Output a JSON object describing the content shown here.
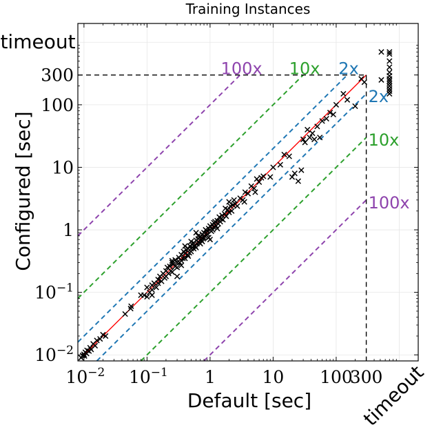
{
  "chart_data": {
    "type": "scatter",
    "title": "Training Instances",
    "xlabel": "Default [sec]",
    "ylabel": "Configured [sec]",
    "xscale": "log",
    "yscale": "log",
    "xlim": [
      0.008,
      2000
    ],
    "ylim": [
      0.008,
      2000
    ],
    "grid": true,
    "x_ticks": [
      {
        "value": 0.01,
        "base": "10",
        "exp": "−2"
      },
      {
        "value": 0.1,
        "base": "10",
        "exp": "−1"
      },
      {
        "value": 1,
        "label": "1"
      },
      {
        "value": 10,
        "label": "10"
      },
      {
        "value": 100,
        "label": "100"
      },
      {
        "value": 300,
        "label": "300"
      }
    ],
    "y_ticks": [
      {
        "value": 0.01,
        "base": "10",
        "exp": "−2"
      },
      {
        "value": 0.1,
        "base": "10",
        "exp": "−1"
      },
      {
        "value": 1,
        "label": "1"
      },
      {
        "value": 10,
        "label": "10"
      },
      {
        "value": 100,
        "label": "100"
      },
      {
        "value": 300,
        "label": "300"
      }
    ],
    "timeout_label": "timeout",
    "timeout_cutoff": 300,
    "timeout_position": 700,
    "reference_lines": [
      {
        "factor": 2,
        "label": "2x",
        "color": "#1f77b4"
      },
      {
        "factor": 10,
        "label": "10x",
        "color": "#2ca02c"
      },
      {
        "factor": 100,
        "label": "100x",
        "color": "#8e44ad"
      }
    ],
    "fit_line": {
      "color": "#ff0000",
      "x_range": [
        0.01,
        300
      ],
      "slope": 1.0
    },
    "marker": "x",
    "marker_color": "#000000",
    "points": [
      [
        0.009,
        0.009
      ],
      [
        0.0095,
        0.0098
      ],
      [
        0.01,
        0.0102
      ],
      [
        0.0102,
        0.0096
      ],
      [
        0.0105,
        0.011
      ],
      [
        0.011,
        0.0105
      ],
      [
        0.0112,
        0.0118
      ],
      [
        0.012,
        0.0115
      ],
      [
        0.0125,
        0.013
      ],
      [
        0.013,
        0.0122
      ],
      [
        0.014,
        0.015
      ],
      [
        0.015,
        0.014
      ],
      [
        0.016,
        0.017
      ],
      [
        0.018,
        0.018
      ],
      [
        0.02,
        0.021
      ],
      [
        0.022,
        0.02
      ],
      [
        0.045,
        0.045
      ],
      [
        0.055,
        0.055
      ],
      [
        0.056,
        0.06
      ],
      [
        0.09,
        0.09
      ],
      [
        0.1,
        0.085
      ],
      [
        0.1,
        0.12
      ],
      [
        0.11,
        0.1
      ],
      [
        0.12,
        0.13
      ],
      [
        0.12,
        0.11
      ],
      [
        0.13,
        0.14
      ],
      [
        0.14,
        0.12
      ],
      [
        0.15,
        0.16
      ],
      [
        0.15,
        0.14
      ],
      [
        0.16,
        0.18
      ],
      [
        0.17,
        0.15
      ],
      [
        0.18,
        0.2
      ],
      [
        0.19,
        0.17
      ],
      [
        0.2,
        0.22
      ],
      [
        0.2,
        0.18
      ],
      [
        0.21,
        0.25
      ],
      [
        0.22,
        0.2
      ],
      [
        0.23,
        0.26
      ],
      [
        0.24,
        0.22
      ],
      [
        0.25,
        0.3
      ],
      [
        0.25,
        0.21
      ],
      [
        0.26,
        0.28
      ],
      [
        0.28,
        0.26
      ],
      [
        0.28,
        0.33
      ],
      [
        0.3,
        0.3
      ],
      [
        0.3,
        0.25
      ],
      [
        0.32,
        0.36
      ],
      [
        0.33,
        0.3
      ],
      [
        0.35,
        0.4
      ],
      [
        0.35,
        0.32
      ],
      [
        0.37,
        0.35
      ],
      [
        0.38,
        0.45
      ],
      [
        0.4,
        0.42
      ],
      [
        0.4,
        0.35
      ],
      [
        0.42,
        0.48
      ],
      [
        0.44,
        0.4
      ],
      [
        0.45,
        0.5
      ],
      [
        0.47,
        0.43
      ],
      [
        0.48,
        0.55
      ],
      [
        0.5,
        0.5
      ],
      [
        0.5,
        0.45
      ],
      [
        0.52,
        0.58
      ],
      [
        0.55,
        0.5
      ],
      [
        0.55,
        0.62
      ],
      [
        0.58,
        0.55
      ],
      [
        0.6,
        0.68
      ],
      [
        0.6,
        0.52
      ],
      [
        0.62,
        0.6
      ],
      [
        0.65,
        0.72
      ],
      [
        0.68,
        0.62
      ],
      [
        0.7,
        0.78
      ],
      [
        0.7,
        0.6
      ],
      [
        0.72,
        0.7
      ],
      [
        0.75,
        0.85
      ],
      [
        0.78,
        0.72
      ],
      [
        0.8,
        0.9
      ],
      [
        0.8,
        0.75
      ],
      [
        0.82,
        0.8
      ],
      [
        0.85,
        1.0
      ],
      [
        0.88,
        0.82
      ],
      [
        0.9,
        0.95
      ],
      [
        0.92,
        0.85
      ],
      [
        0.95,
        1.05
      ],
      [
        1.0,
        1.0
      ],
      [
        1.0,
        1.15
      ],
      [
        1.05,
        0.95
      ],
      [
        1.1,
        1.2
      ],
      [
        1.1,
        1.0
      ],
      [
        1.15,
        1.1
      ],
      [
        1.2,
        1.35
      ],
      [
        1.25,
        1.15
      ],
      [
        1.3,
        1.4
      ],
      [
        1.35,
        1.25
      ],
      [
        1.4,
        1.6
      ],
      [
        1.45,
        1.35
      ],
      [
        1.5,
        1.5
      ],
      [
        1.55,
        1.7
      ],
      [
        1.6,
        1.45
      ],
      [
        1.7,
        1.8
      ],
      [
        1.8,
        1.65
      ],
      [
        1.9,
        2.1
      ],
      [
        2.0,
        1.9
      ],
      [
        2.1,
        2.4
      ],
      [
        2.2,
        2.0
      ],
      [
        2.3,
        2.5
      ],
      [
        2.5,
        2.6
      ],
      [
        2.7,
        2.4
      ],
      [
        3.0,
        3.2
      ],
      [
        3.3,
        3.0
      ],
      [
        3.6,
        4.0
      ],
      [
        4.0,
        3.8
      ],
      [
        4.5,
        5.0
      ],
      [
        5.0,
        4.6
      ],
      [
        5.5,
        6.5
      ],
      [
        6.0,
        5.8
      ],
      [
        6.5,
        6.8
      ],
      [
        7.0,
        7.2
      ],
      [
        9.0,
        7.0
      ],
      [
        10.0,
        10.0
      ],
      [
        13.0,
        11.0
      ],
      [
        15.0,
        16.0
      ],
      [
        18.0,
        15.0
      ],
      [
        20.0,
        7.0
      ],
      [
        22.0,
        8.0
      ],
      [
        25.0,
        6.0
      ],
      [
        28.0,
        9.0
      ],
      [
        30.0,
        28.0
      ],
      [
        32.0,
        25.0
      ],
      [
        35.0,
        40.0
      ],
      [
        38.0,
        30.0
      ],
      [
        42.0,
        35.0
      ],
      [
        45.0,
        28.0
      ],
      [
        50.0,
        45.0
      ],
      [
        55.0,
        30.0
      ],
      [
        60.0,
        55.0
      ],
      [
        70.0,
        60.0
      ],
      [
        80.0,
        75.0
      ],
      [
        90.0,
        70.0
      ],
      [
        100.0,
        100.0
      ],
      [
        130.0,
        150.0
      ],
      [
        150.0,
        120.0
      ],
      [
        200.0,
        95.0
      ],
      [
        250.0,
        260.0
      ],
      [
        280.0,
        230.0
      ],
      [
        0.12,
        0.09
      ],
      [
        0.5,
        0.65
      ],
      [
        0.95,
        0.75
      ],
      [
        1.3,
        1.05
      ],
      [
        2.4,
        3.0
      ],
      [
        0.35,
        0.27
      ],
      [
        0.65,
        0.8
      ],
      [
        3.5,
        2.8
      ],
      [
        5.2,
        4.0
      ],
      [
        1.75,
        2.2
      ],
      [
        0.08,
        0.09
      ],
      [
        0.25,
        0.32
      ],
      [
        0.45,
        0.38
      ],
      [
        0.75,
        0.65
      ],
      [
        1.15,
        1.3
      ],
      [
        0.3,
        0.18
      ],
      [
        0.6,
        0.9
      ],
      [
        1.0,
        0.7
      ],
      [
        2.0,
        2.8
      ],
      [
        0.4,
        0.55
      ],
      [
        700,
        650
      ],
      [
        700,
        500
      ],
      [
        700,
        400
      ],
      [
        700,
        330
      ],
      [
        700,
        290
      ],
      [
        700,
        260
      ],
      [
        700,
        240
      ],
      [
        700,
        220
      ],
      [
        700,
        200
      ],
      [
        700,
        180
      ],
      [
        700,
        165
      ],
      [
        700,
        150
      ],
      [
        520,
        700
      ],
      [
        700,
        700
      ],
      [
        520,
        250
      ]
    ]
  }
}
